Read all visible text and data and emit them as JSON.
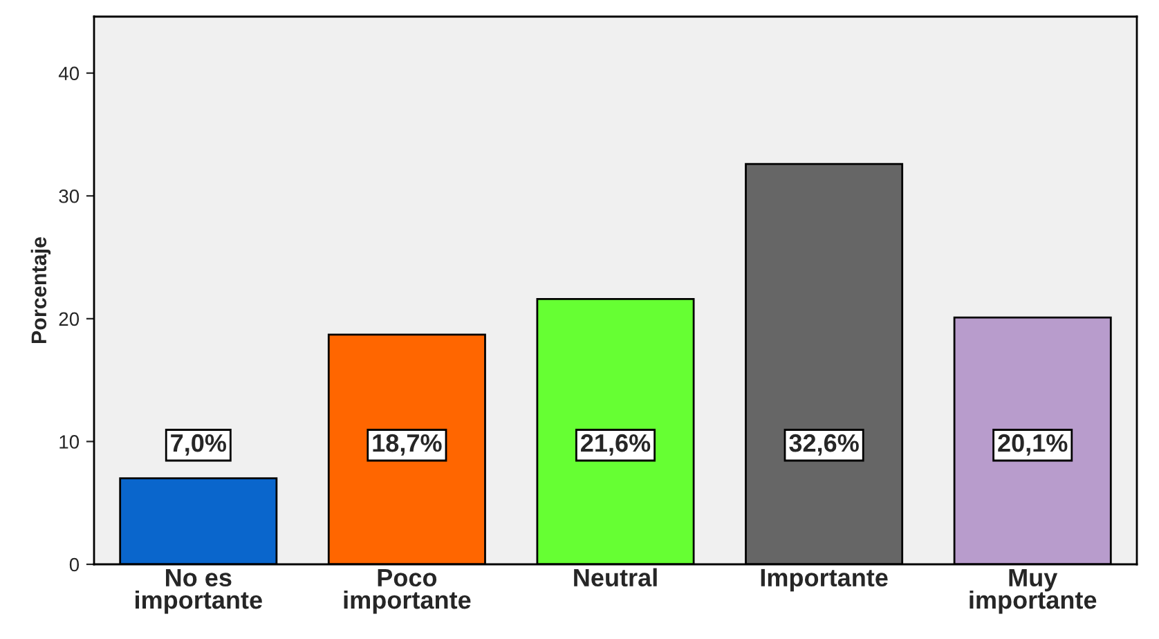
{
  "chart_data": {
    "type": "bar",
    "ylabel": "Porcentaje",
    "categories": [
      "No es\nimportante",
      "Poco\nimportante",
      "Neutral",
      "Importante",
      "Muy\nimportante"
    ],
    "values": [
      7.0,
      18.7,
      21.6,
      32.6,
      20.1
    ],
    "colors": [
      "#0a66cc",
      "#ff6600",
      "#66ff33",
      "#666666",
      "#b89ccc"
    ],
    "value_labels": [
      "7,0%",
      "18,7%",
      "21,6%",
      "32,6%",
      "20,1%"
    ],
    "ylim": [
      0,
      44.6
    ],
    "yticks": [
      0,
      10,
      20,
      30,
      40
    ],
    "grid": false,
    "legend": false
  }
}
